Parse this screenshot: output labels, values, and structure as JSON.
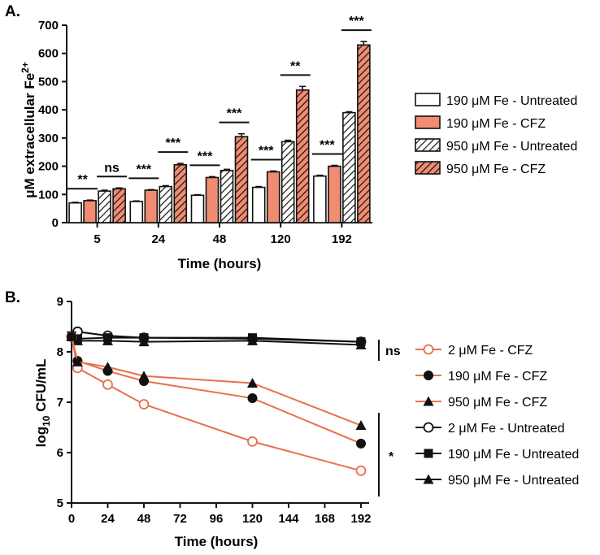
{
  "chart_data": [
    {
      "panel": "A.",
      "type": "bar",
      "categories": [
        "5",
        "24",
        "48",
        "120",
        "192"
      ],
      "xlabel": "Time (hours)",
      "ylabel_main": "μM extracellular Fe",
      "ylabel_sup": "2+",
      "ylim": [
        0,
        700
      ],
      "yticks": [
        0,
        100,
        200,
        300,
        400,
        500,
        600,
        700
      ],
      "series": [
        {
          "name": "190 μM Fe - Untreated",
          "style": "white",
          "values": [
            70,
            75,
            97,
            125,
            165
          ],
          "errors": [
            2,
            2,
            2,
            3,
            3
          ]
        },
        {
          "name": "190 μM Fe - CFZ",
          "style": "salmon",
          "values": [
            78,
            115,
            160,
            180,
            200
          ],
          "errors": [
            2,
            2,
            3,
            3,
            3
          ]
        },
        {
          "name": "950 μM Fe - Untreated",
          "style": "white-hatch",
          "values": [
            112,
            128,
            185,
            287,
            390
          ],
          "errors": [
            3,
            3,
            4,
            5,
            3
          ]
        },
        {
          "name": "950 μM Fe - CFZ",
          "style": "salmon-hatch",
          "values": [
            120,
            205,
            305,
            470,
            630
          ],
          "errors": [
            3,
            5,
            10,
            13,
            12
          ]
        }
      ],
      "significance": [
        {
          "label": "**",
          "category": 0,
          "pair": "190"
        },
        {
          "label": "ns",
          "category": 0,
          "pair": "950"
        },
        {
          "label": "***",
          "category": 1,
          "pair": "190"
        },
        {
          "label": "***",
          "category": 1,
          "pair": "950"
        },
        {
          "label": "***",
          "category": 2,
          "pair": "190"
        },
        {
          "label": "***",
          "category": 2,
          "pair": "950"
        },
        {
          "label": "***",
          "category": 3,
          "pair": "190"
        },
        {
          "label": "**",
          "category": 3,
          "pair": "950"
        },
        {
          "label": "***",
          "category": 4,
          "pair": "190"
        },
        {
          "label": "***",
          "category": 4,
          "pair": "950"
        }
      ]
    },
    {
      "panel": "B.",
      "type": "line",
      "xlabel": "Time (hours)",
      "ylabel_base": "log",
      "ylabel_sub": "10",
      "ylabel_rest": " CFU/mL",
      "xlim": [
        0,
        192
      ],
      "ylim": [
        5,
        9
      ],
      "xticks": [
        0,
        24,
        48,
        72,
        96,
        120,
        144,
        168,
        192
      ],
      "yticks": [
        5,
        6,
        7,
        8,
        9
      ],
      "series": [
        {
          "name": "2 μM Fe - CFZ",
          "color": "#e8704e",
          "marker": "circle-open",
          "x": [
            0,
            4,
            24,
            48,
            120,
            192
          ],
          "y": [
            8.3,
            7.68,
            7.35,
            6.96,
            6.22,
            5.64
          ]
        },
        {
          "name": "190 μM Fe - CFZ",
          "color": "#e8704e",
          "marker": "circle-filled",
          "x": [
            0,
            4,
            24,
            48,
            120,
            192
          ],
          "y": [
            8.3,
            7.82,
            7.62,
            7.42,
            7.08,
            6.18
          ]
        },
        {
          "name": "950 μM Fe - CFZ",
          "color": "#e8704e",
          "marker": "triangle-filled",
          "x": [
            0,
            4,
            24,
            48,
            120,
            192
          ],
          "y": [
            8.3,
            7.8,
            7.7,
            7.52,
            7.38,
            6.54
          ]
        },
        {
          "name": "2 μM Fe - Untreated",
          "color": "#111111",
          "marker": "circle-open",
          "x": [
            0,
            4,
            24,
            48,
            120,
            192
          ],
          "y": [
            8.3,
            8.4,
            8.32,
            8.28,
            8.26,
            8.2
          ]
        },
        {
          "name": "190 μM Fe - Untreated",
          "color": "#111111",
          "marker": "square-filled",
          "x": [
            0,
            4,
            24,
            48,
            120,
            192
          ],
          "y": [
            8.32,
            8.26,
            8.28,
            8.28,
            8.28,
            8.2
          ]
        },
        {
          "name": "950 μM Fe - Untreated",
          "color": "#111111",
          "marker": "triangle-filled",
          "x": [
            0,
            4,
            24,
            48,
            120,
            192
          ],
          "y": [
            8.32,
            8.22,
            8.22,
            8.2,
            8.22,
            8.14
          ]
        }
      ],
      "significance": [
        {
          "label": "ns",
          "group": "untreated"
        },
        {
          "label": "*",
          "group": "cfz"
        }
      ]
    }
  ],
  "colors": {
    "salmon": "#f08c72",
    "salmon_line": "#e8704e",
    "ink": "#111111"
  }
}
